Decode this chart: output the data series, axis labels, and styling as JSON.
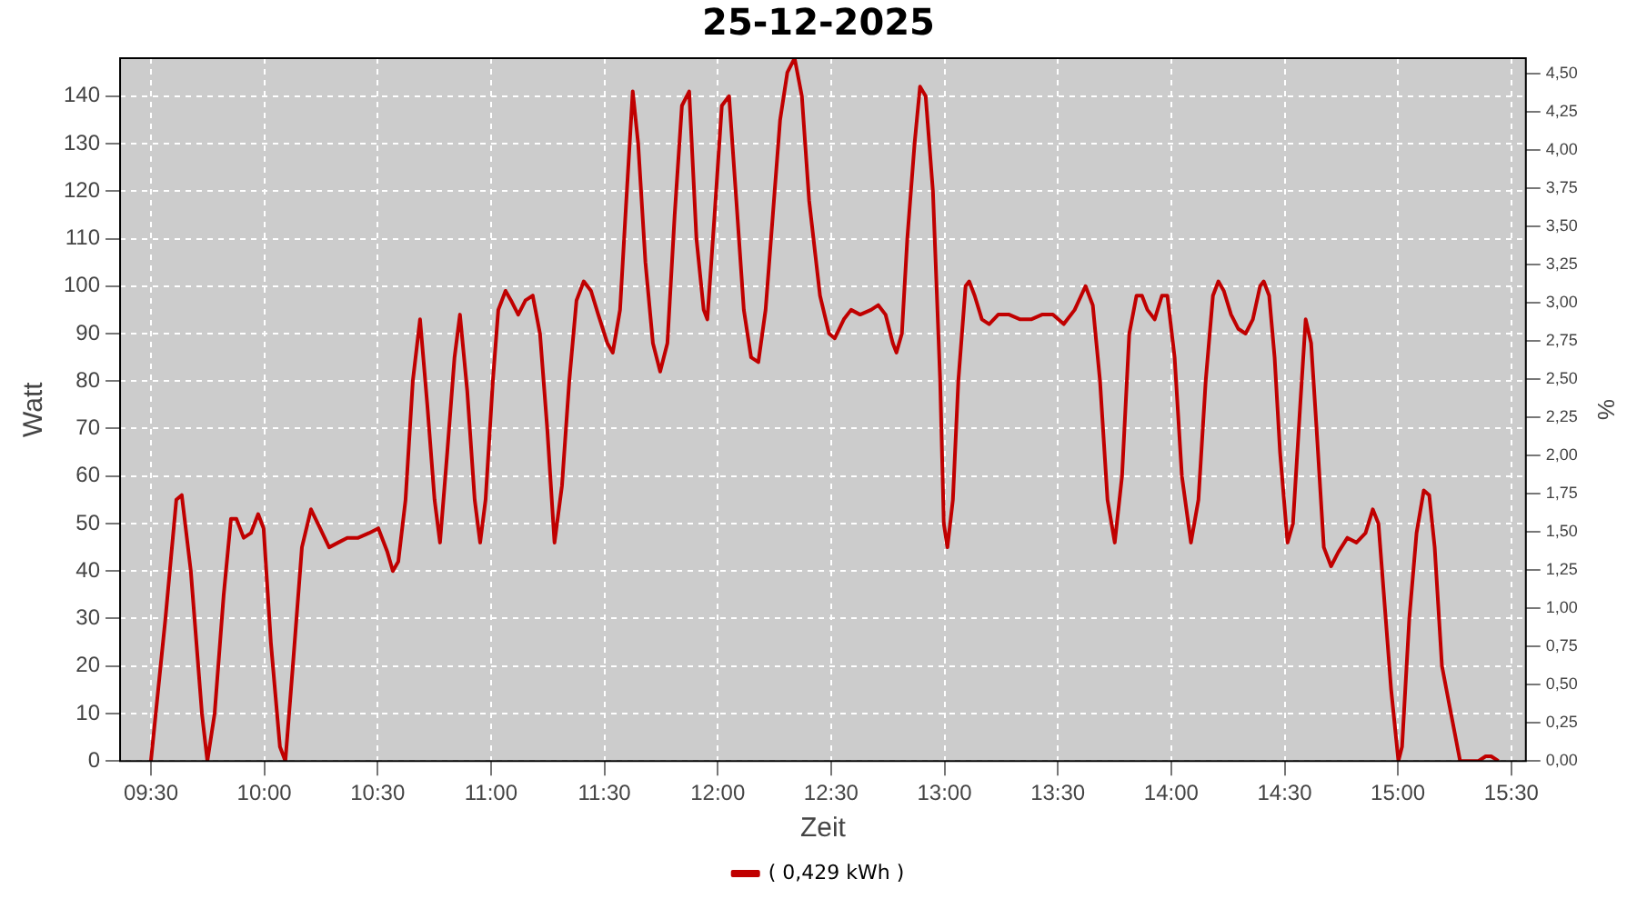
{
  "chart_data": {
    "type": "line",
    "title": "25-12-2025",
    "xlabel": "Zeit",
    "ylabel": "Watt",
    "y2label": "%",
    "x": [
      9.5,
      9.564,
      9.612,
      9.636,
      9.676,
      9.725,
      9.749,
      9.781,
      9.821,
      9.853,
      9.877,
      9.909,
      9.941,
      9.973,
      9.997,
      10.029,
      10.069,
      10.093,
      10.126,
      10.166,
      10.206,
      10.246,
      10.286,
      10.326,
      10.366,
      10.414,
      10.462,
      10.503,
      10.543,
      10.567,
      10.591,
      10.623,
      10.655,
      10.687,
      10.719,
      10.751,
      10.775,
      10.807,
      10.839,
      10.863,
      10.895,
      10.928,
      10.952,
      10.976,
      11.008,
      11.032,
      11.064,
      11.088,
      11.12,
      11.152,
      11.184,
      11.216,
      11.248,
      11.28,
      11.313,
      11.345,
      11.377,
      11.409,
      11.441,
      11.473,
      11.513,
      11.537,
      11.569,
      11.593,
      11.625,
      11.649,
      11.681,
      11.714,
      11.746,
      11.778,
      11.81,
      11.842,
      11.874,
      11.906,
      11.938,
      11.954,
      11.986,
      12.018,
      12.05,
      12.082,
      12.115,
      12.147,
      12.179,
      12.211,
      12.243,
      12.275,
      12.307,
      12.339,
      12.371,
      12.403,
      12.451,
      12.491,
      12.516,
      12.556,
      12.588,
      12.628,
      12.676,
      12.708,
      12.74,
      12.772,
      12.788,
      12.812,
      12.836,
      12.868,
      12.892,
      12.917,
      12.949,
      12.981,
      12.997,
      13.013,
      13.037,
      13.061,
      13.093,
      13.109,
      13.133,
      13.165,
      13.197,
      13.237,
      13.285,
      13.334,
      13.382,
      13.43,
      13.478,
      13.526,
      13.574,
      13.622,
      13.654,
      13.686,
      13.719,
      13.751,
      13.783,
      13.815,
      13.847,
      13.871,
      13.895,
      13.927,
      13.959,
      13.983,
      14.015,
      14.047,
      14.087,
      14.12,
      14.152,
      14.184,
      14.208,
      14.232,
      14.264,
      14.296,
      14.328,
      14.36,
      14.392,
      14.408,
      14.432,
      14.456,
      14.48,
      14.513,
      14.537,
      14.569,
      14.593,
      14.617,
      14.641,
      14.673,
      14.705,
      14.737,
      14.777,
      14.817,
      14.857,
      14.889,
      14.914,
      14.938,
      14.97,
      15.002,
      15.018,
      15.05,
      15.082,
      15.114,
      15.138,
      15.162,
      15.194,
      15.226,
      15.274,
      15.355,
      15.387,
      15.411,
      15.443
    ],
    "series": [
      {
        "name": "( 0,429 kWh )",
        "color": "#c00000",
        "values": [
          0,
          30,
          55,
          56,
          40,
          10,
          0,
          10,
          35,
          51,
          51,
          47,
          48,
          52,
          49,
          25,
          3,
          0,
          20,
          45,
          53,
          49,
          45,
          46,
          47,
          47,
          48,
          49,
          44,
          40,
          42,
          55,
          80,
          93,
          75,
          55,
          46,
          65,
          85,
          94,
          78,
          55,
          46,
          55,
          80,
          95,
          99,
          97,
          94,
          97,
          98,
          90,
          70,
          46,
          58,
          80,
          97,
          101,
          99,
          94,
          88,
          86,
          95,
          115,
          141,
          130,
          105,
          88,
          82,
          88,
          115,
          138,
          141,
          110,
          95,
          93,
          115,
          138,
          140,
          118,
          95,
          85,
          84,
          95,
          115,
          135,
          145,
          148,
          140,
          118,
          98,
          90,
          89,
          93,
          95,
          94,
          95,
          96,
          94,
          88,
          86,
          90,
          110,
          130,
          142,
          140,
          120,
          80,
          50,
          45,
          55,
          80,
          100,
          101,
          98,
          93,
          92,
          94,
          94,
          93,
          93,
          94,
          94,
          92,
          95,
          100,
          96,
          80,
          55,
          46,
          60,
          90,
          98,
          98,
          95,
          93,
          98,
          98,
          85,
          60,
          46,
          55,
          80,
          98,
          101,
          99,
          94,
          91,
          90,
          93,
          100,
          101,
          98,
          85,
          65,
          46,
          50,
          75,
          93,
          88,
          70,
          45,
          41,
          44,
          47,
          46,
          48,
          53,
          50,
          35,
          15,
          0,
          3,
          30,
          48,
          57,
          56,
          45,
          20,
          12,
          0,
          0,
          1,
          1,
          0
        ]
      }
    ],
    "xlim": [
      9.364,
      15.564
    ],
    "xticks": [
      {
        "value": 9.5,
        "label": "09:30"
      },
      {
        "value": 10,
        "label": "10:00"
      },
      {
        "value": 10.5,
        "label": "10:30"
      },
      {
        "value": 11,
        "label": "11:00"
      },
      {
        "value": 11.5,
        "label": "11:30"
      },
      {
        "value": 12,
        "label": "12:00"
      },
      {
        "value": 12.5,
        "label": "12:30"
      },
      {
        "value": 13,
        "label": "13:00"
      },
      {
        "value": 13.5,
        "label": "13:30"
      },
      {
        "value": 14,
        "label": "14:00"
      },
      {
        "value": 14.5,
        "label": "14:30"
      },
      {
        "value": 15,
        "label": "15:00"
      },
      {
        "value": 15.5,
        "label": "15:30"
      }
    ],
    "ylim": [
      0,
      148
    ],
    "yticks": [
      0,
      10,
      20,
      30,
      40,
      50,
      60,
      70,
      80,
      90,
      100,
      110,
      120,
      130,
      140
    ],
    "y2lim": [
      0,
      4.6
    ],
    "y2ticks": [
      {
        "value": 0,
        "label": "0,00"
      },
      {
        "value": 0.25,
        "label": "0,25"
      },
      {
        "value": 0.5,
        "label": "0,50"
      },
      {
        "value": 0.75,
        "label": "0,75"
      },
      {
        "value": 1,
        "label": "1,00"
      },
      {
        "value": 1.25,
        "label": "1,25"
      },
      {
        "value": 1.5,
        "label": "1,50"
      },
      {
        "value": 1.75,
        "label": "1,75"
      },
      {
        "value": 2,
        "label": "2,00"
      },
      {
        "value": 2.25,
        "label": "2,25"
      },
      {
        "value": 2.5,
        "label": "2,50"
      },
      {
        "value": 2.75,
        "label": "2,75"
      },
      {
        "value": 3,
        "label": "3,00"
      },
      {
        "value": 3.25,
        "label": "3,25"
      },
      {
        "value": 3.5,
        "label": "3,50"
      },
      {
        "value": 3.75,
        "label": "3,75"
      },
      {
        "value": 4,
        "label": "4,00"
      },
      {
        "value": 4.25,
        "label": "4,25"
      },
      {
        "value": 4.5,
        "label": "4,50"
      }
    ],
    "grid": true,
    "legend": "bottom",
    "marker": "none",
    "line_style": "solid"
  }
}
